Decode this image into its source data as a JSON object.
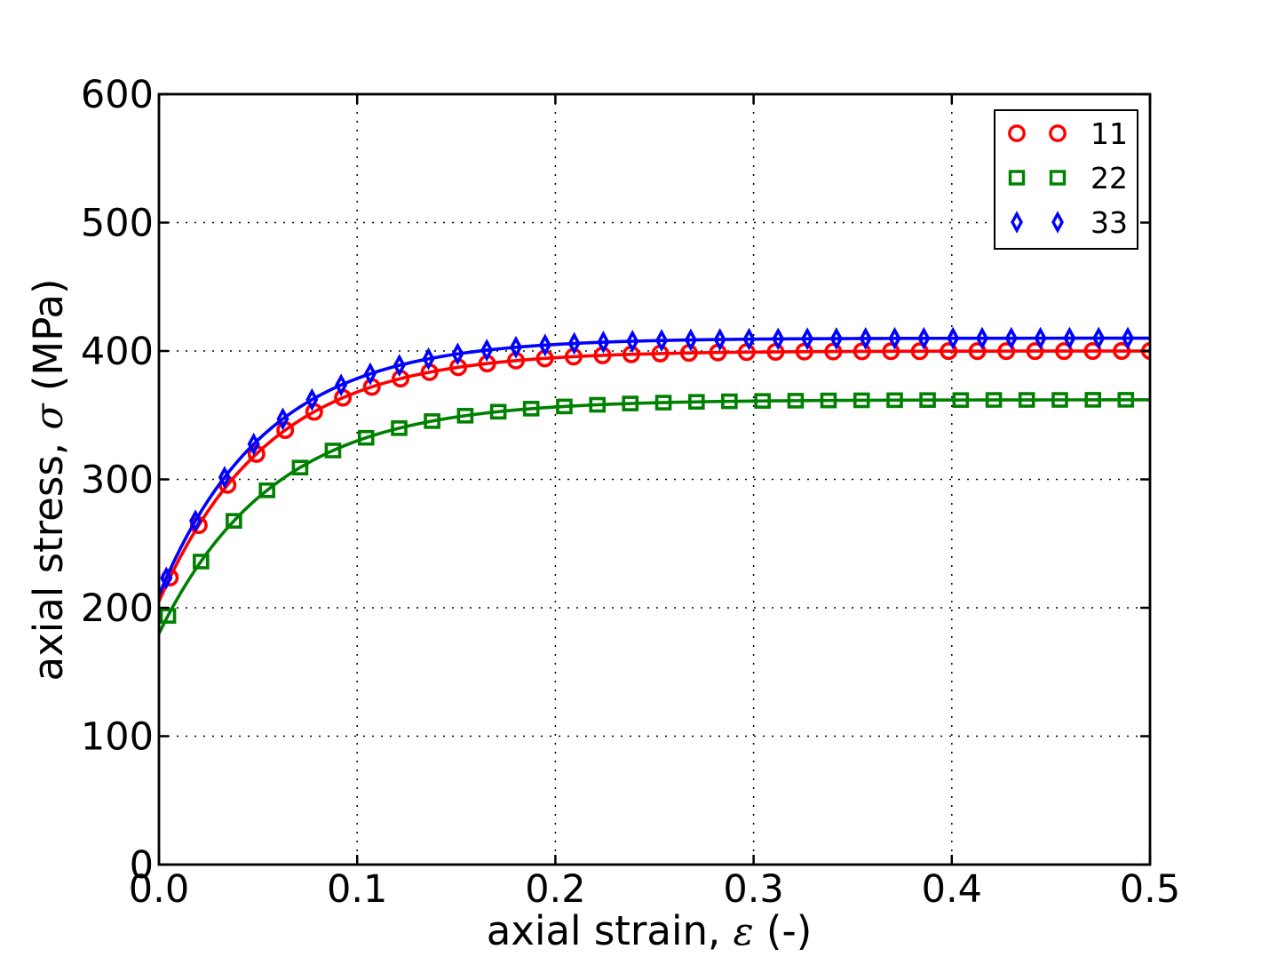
{
  "chart_data": {
    "type": "line",
    "title": "",
    "xlabel": "axial strain, ε (-)",
    "ylabel": "axial stress, σ (MPa)",
    "xlabel_parts": {
      "prefix": "axial strain, ",
      "symbol": "ε",
      "suffix": " (-)"
    },
    "ylabel_parts": {
      "prefix": "axial stress, ",
      "symbol": "σ",
      "suffix": " (MPa)"
    },
    "xlim": [
      0.0,
      0.5
    ],
    "ylim": [
      0,
      600
    ],
    "xticks": {
      "values": [
        0.0,
        0.1,
        0.2,
        0.3,
        0.4,
        0.5
      ],
      "labels": [
        "0.0",
        "0.1",
        "0.2",
        "0.3",
        "0.4",
        "0.5"
      ]
    },
    "yticks": {
      "values": [
        0,
        100,
        200,
        300,
        400,
        500,
        600
      ],
      "labels": [
        "0",
        "100",
        "200",
        "300",
        "400",
        "500",
        "600"
      ]
    },
    "grid": {
      "visible": true,
      "style": "dotted",
      "color": "#000000"
    },
    "axes_color": "#000000",
    "background": "#ffffff",
    "legend": {
      "location": "upper-right",
      "numpoints": 2,
      "entries": [
        "11",
        "22",
        "33"
      ]
    },
    "series": [
      {
        "label": "11",
        "color": "#ff0000",
        "marker": "circle",
        "line_style": "solid",
        "voce_model": {
          "sigma_0": 205,
          "sigma_sat": 400,
          "tau": 0.0553
        },
        "strain": [
          0.0055,
          0.0201,
          0.0346,
          0.0492,
          0.0637,
          0.0783,
          0.0928,
          0.1074,
          0.1219,
          0.1365,
          0.151,
          0.1656,
          0.1801,
          0.1947,
          0.2092,
          0.2238,
          0.2383,
          0.2529,
          0.2674,
          0.282,
          0.2965,
          0.3111,
          0.3256,
          0.3402,
          0.3547,
          0.3693,
          0.3838,
          0.3984,
          0.4129,
          0.4275,
          0.442,
          0.4566,
          0.4711,
          0.4857,
          0.5
        ],
        "stress": [
          223.5,
          264.3,
          295.7,
          319.8,
          338.4,
          352.6,
          363.6,
          372.0,
          378.5,
          383.5,
          387.3,
          390.2,
          392.5,
          394.2,
          395.6,
          396.6,
          397.4,
          398.0,
          398.5,
          398.8,
          399.1,
          399.3,
          399.5,
          399.6,
          399.7,
          399.8,
          399.8,
          399.9,
          399.9,
          399.9,
          399.9,
          399.9,
          400.0,
          400.0,
          400.0
        ]
      },
      {
        "label": "22",
        "color": "#008000",
        "marker": "square",
        "line_style": "solid",
        "voce_model": {
          "sigma_0": 180,
          "sigma_sat": 362,
          "tau": 0.0575
        },
        "strain": [
          0.0045,
          0.0212,
          0.0378,
          0.0545,
          0.0712,
          0.0878,
          0.1045,
          0.1212,
          0.1378,
          0.1545,
          0.1712,
          0.1878,
          0.2045,
          0.2212,
          0.2378,
          0.2545,
          0.2712,
          0.2878,
          0.3045,
          0.3212,
          0.3378,
          0.3545,
          0.3712,
          0.3878,
          0.4045,
          0.4212,
          0.4378,
          0.4545,
          0.4712,
          0.4878
        ],
        "stress": [
          193.7,
          236.0,
          267.7,
          291.5,
          309.2,
          322.5,
          332.4,
          339.9,
          345.4,
          349.6,
          352.7,
          355.1,
          356.8,
          358.1,
          359.1,
          359.8,
          360.4,
          360.8,
          361.1,
          361.3,
          361.5,
          361.6,
          361.7,
          361.8,
          361.8,
          361.9,
          361.9,
          361.9,
          362.0,
          362.0
        ]
      },
      {
        "label": "33",
        "color": "#0000ff",
        "marker": "thin-diamond",
        "line_style": "solid",
        "voce_model": {
          "sigma_0": 210,
          "sigma_sat": 410,
          "tau": 0.054
        },
        "strain": [
          0.0037,
          0.0184,
          0.0331,
          0.0478,
          0.0625,
          0.0772,
          0.0919,
          0.1066,
          0.1213,
          0.136,
          0.1507,
          0.1654,
          0.1801,
          0.1948,
          0.2095,
          0.2242,
          0.2389,
          0.2536,
          0.2683,
          0.283,
          0.2977,
          0.3124,
          0.3271,
          0.3418,
          0.3565,
          0.3712,
          0.3859,
          0.4006,
          0.4153,
          0.43,
          0.4447,
          0.4594,
          0.4741,
          0.4888
        ],
        "stress": [
          223.2,
          267.7,
          301.6,
          327.5,
          347.1,
          362.1,
          373.5,
          382.2,
          388.8,
          393.9,
          397.7,
          400.6,
          402.9,
          404.6,
          405.9,
          406.9,
          407.6,
          408.2,
          408.6,
          408.9,
          409.2,
          409.4,
          409.5,
          409.6,
          409.7,
          409.8,
          409.8,
          409.9,
          409.9,
          409.9,
          409.9,
          410.0,
          410.0,
          410.0
        ]
      }
    ]
  }
}
